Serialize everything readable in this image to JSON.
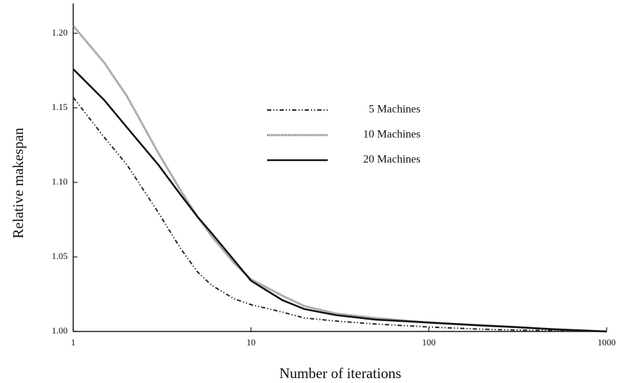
{
  "chart_data": {
    "type": "line",
    "xlabel": "Number of iterations",
    "ylabel": "Relative makespan",
    "xscale": "log",
    "x": [
      1,
      1.5,
      2,
      3,
      4,
      5,
      6,
      8,
      10,
      15,
      20,
      30,
      50,
      100,
      200,
      300,
      500,
      1000
    ],
    "series": [
      {
        "name": "5 Machines",
        "color": "#222222",
        "style": "dashdot",
        "values": [
          1.157,
          1.13,
          1.112,
          1.08,
          1.056,
          1.04,
          1.031,
          1.022,
          1.018,
          1.013,
          1.009,
          1.007,
          1.005,
          1.003,
          1.0015,
          1.001,
          1.0005,
          1.0
        ]
      },
      {
        "name": "10 Machines",
        "color": "#777777",
        "style": "dotted",
        "values": [
          1.205,
          1.18,
          1.158,
          1.12,
          1.095,
          1.077,
          1.064,
          1.046,
          1.035,
          1.024,
          1.017,
          1.012,
          1.009,
          1.006,
          1.004,
          1.003,
          1.0015,
          1.0
        ]
      },
      {
        "name": "20 Machines",
        "color": "#111111",
        "style": "solid",
        "values": [
          1.176,
          1.155,
          1.137,
          1.112,
          1.092,
          1.077,
          1.066,
          1.048,
          1.034,
          1.021,
          1.015,
          1.011,
          1.008,
          1.006,
          1.004,
          1.003,
          1.0015,
          1.0
        ]
      }
    ],
    "xlim": [
      1,
      1000
    ],
    "xticks": [
      1,
      10,
      100,
      1000
    ],
    "ylim": [
      1.0,
      1.22
    ],
    "yticks": [
      {
        "value": 1.0,
        "label": "1.00"
      },
      1.05,
      {
        "value": 1.1,
        "label": "1.10"
      },
      1.15,
      {
        "value": 1.2,
        "label": "1.20"
      }
    ],
    "grid": false,
    "legend": "upper center"
  }
}
